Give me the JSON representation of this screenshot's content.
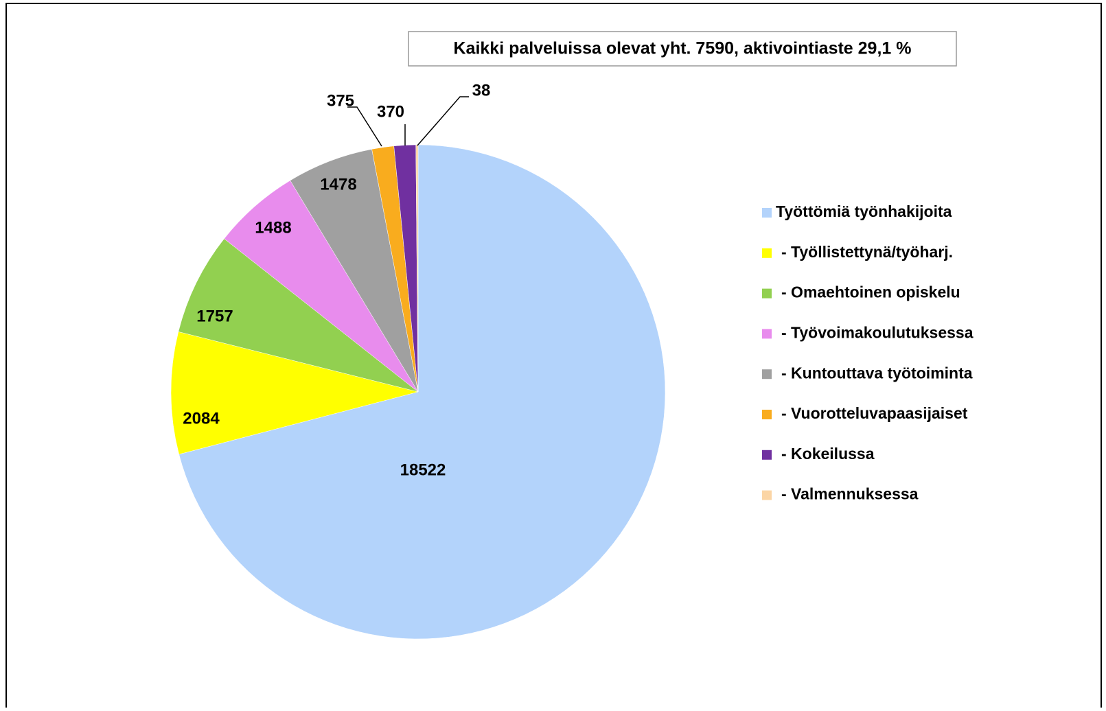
{
  "chart_data": {
    "type": "pie",
    "annotation": "Kaikki palveluissa olevat yht. 7590, aktivointiaste 29,1 %",
    "categories": [
      "Työttömiä työnhakijoita",
      "- Työllistettynä/työharj.",
      "- Omaehtoinen opiskelu",
      "- Työvoimakoulutuksessa",
      "- Kuntouttava työtoiminta",
      "- Vuorotteluvapaasijaiset",
      "- Kokeilussa",
      "- Valmennuksessa"
    ],
    "values": [
      18522,
      2084,
      1757,
      1488,
      1478,
      375,
      370,
      38
    ],
    "colors": [
      "#b3d3fb",
      "#ffff00",
      "#92d050",
      "#e88ced",
      "#a0a0a0",
      "#f9ac1e",
      "#7030a0",
      "#fbd5a5"
    ],
    "legend": "right"
  }
}
